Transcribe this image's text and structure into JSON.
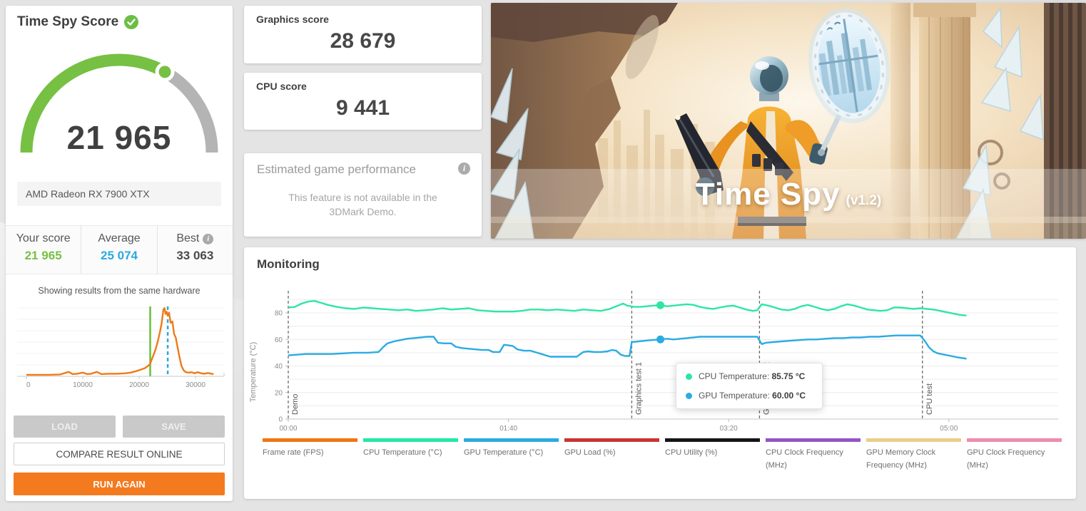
{
  "result_card": {
    "title": "Time Spy Score",
    "score": "21 965",
    "gpu_name": "AMD Radeon RX 7900 XTX",
    "gauge": {
      "fraction": 0.664,
      "green": "#76c043",
      "gray": "#b4b4b4"
    },
    "stats": [
      {
        "label": "Your score",
        "value": "21 965",
        "color": "#76c043"
      },
      {
        "label": "Average",
        "value": "25 074",
        "color": "#2ba9e0"
      },
      {
        "label": "Best",
        "value": "33 063",
        "color": "#4a4a4a"
      }
    ],
    "distribution_note": "Showing results from the same hardware",
    "buttons": {
      "load": "LOAD",
      "save": "SAVE",
      "compare": "COMPARE RESULT ONLINE",
      "run": "RUN AGAIN"
    }
  },
  "score_cards": {
    "graphics": {
      "label": "Graphics score",
      "value": "28 679"
    },
    "cpu": {
      "label": "CPU score",
      "value": "9 441"
    }
  },
  "estimated_card": {
    "title": "Estimated game performance",
    "body_line1": "This feature is not available in the",
    "body_line2": "3DMark Demo."
  },
  "hero": {
    "title": "Time Spy",
    "version": "(v1.2)"
  },
  "monitoring": {
    "title": "Monitoring"
  },
  "chart_data": [
    {
      "type": "line",
      "name": "score-distribution-histogram",
      "title": "Showing results from the same hardware",
      "xticks": [
        0,
        10000,
        20000,
        30000
      ],
      "xlim": [
        0,
        36300
      ],
      "your_score": 21965,
      "average": 25074,
      "line_color": "#ef7a17",
      "your_color": "#6abf3e",
      "average_color": "#2ba9e0",
      "points": [
        [
          0,
          0.02
        ],
        [
          2000,
          0.02
        ],
        [
          4000,
          0.02
        ],
        [
          6000,
          0.025
        ],
        [
          7500,
          0.06
        ],
        [
          8200,
          0.03
        ],
        [
          9000,
          0.035
        ],
        [
          10000,
          0.05
        ],
        [
          10800,
          0.03
        ],
        [
          11500,
          0.035
        ],
        [
          12500,
          0.06
        ],
        [
          13300,
          0.03
        ],
        [
          14500,
          0.035
        ],
        [
          16000,
          0.035
        ],
        [
          17500,
          0.04
        ],
        [
          18500,
          0.05
        ],
        [
          19500,
          0.07
        ],
        [
          20300,
          0.09
        ],
        [
          21000,
          0.11
        ],
        [
          21600,
          0.14
        ],
        [
          21965,
          0.17
        ],
        [
          22400,
          0.26
        ],
        [
          22900,
          0.36
        ],
        [
          23300,
          0.47
        ],
        [
          23700,
          0.6
        ],
        [
          24000,
          0.72
        ],
        [
          24300,
          0.9
        ],
        [
          24500,
          0.92
        ],
        [
          24700,
          0.84
        ],
        [
          24900,
          0.87
        ],
        [
          25074,
          0.82
        ],
        [
          25300,
          0.86
        ],
        [
          25600,
          0.72
        ],
        [
          25900,
          0.74
        ],
        [
          26200,
          0.57
        ],
        [
          26500,
          0.52
        ],
        [
          26800,
          0.4
        ],
        [
          27100,
          0.28
        ],
        [
          27500,
          0.14
        ],
        [
          27900,
          0.08
        ],
        [
          28300,
          0.055
        ],
        [
          28800,
          0.05
        ],
        [
          29300,
          0.055
        ],
        [
          29800,
          0.04
        ],
        [
          30400,
          0.055
        ],
        [
          31000,
          0.04
        ],
        [
          31600,
          0.035
        ],
        [
          32200,
          0.045
        ],
        [
          32800,
          0.035
        ],
        [
          33200,
          0.03
        ]
      ]
    },
    {
      "type": "line",
      "name": "monitoring",
      "ylabel": "Temperature (°C)",
      "ylim": [
        0,
        97
      ],
      "yticks": [
        0,
        20,
        40,
        60,
        80
      ],
      "grid_step": 10,
      "xlim": [
        0,
        350
      ],
      "xticks": [
        {
          "t": 0,
          "label": "00:00"
        },
        {
          "t": 100,
          "label": "01:40"
        },
        {
          "t": 200,
          "label": "03:20"
        },
        {
          "t": 300,
          "label": "05:00"
        }
      ],
      "events": [
        {
          "t": 0,
          "label": "Demo"
        },
        {
          "t": 156,
          "label": "Graphics test 1"
        },
        {
          "t": 214,
          "label": "Graphics test 2"
        },
        {
          "t": 288,
          "label": "CPU test"
        }
      ],
      "marker": {
        "t": 169,
        "cpu": 85.75,
        "gpu": 60.0
      },
      "tooltip": {
        "rows": [
          {
            "label": "CPU Temperature: ",
            "value": "85.75 °C",
            "color": "#2ee6a2"
          },
          {
            "label": "GPU Temperature: ",
            "value": "60.00 °C",
            "color": "#2aabe3"
          }
        ]
      },
      "series": [
        {
          "name": "CPU Temperature (°C)",
          "color": "#2ee6a2",
          "points": [
            [
              0,
              84
            ],
            [
              3,
              84.5
            ],
            [
              6,
              87
            ],
            [
              9,
              88.5
            ],
            [
              12,
              89
            ],
            [
              15,
              87.5
            ],
            [
              18,
              86
            ],
            [
              22,
              84.5
            ],
            [
              26,
              83.5
            ],
            [
              30,
              83
            ],
            [
              34,
              84
            ],
            [
              38,
              83.5
            ],
            [
              42,
              83
            ],
            [
              46,
              82.5
            ],
            [
              50,
              82
            ],
            [
              54,
              82.5
            ],
            [
              58,
              81.5
            ],
            [
              62,
              82
            ],
            [
              66,
              82.5
            ],
            [
              70,
              83.5
            ],
            [
              74,
              82.5
            ],
            [
              78,
              83
            ],
            [
              82,
              83.5
            ],
            [
              86,
              82
            ],
            [
              90,
              81.5
            ],
            [
              94,
              81
            ],
            [
              98,
              81
            ],
            [
              102,
              81
            ],
            [
              106,
              81.5
            ],
            [
              110,
              82.5
            ],
            [
              114,
              82.5
            ],
            [
              118,
              82
            ],
            [
              122,
              82.5
            ],
            [
              126,
              82
            ],
            [
              130,
              81.5
            ],
            [
              134,
              82.5
            ],
            [
              138,
              82
            ],
            [
              142,
              81.5
            ],
            [
              146,
              83
            ],
            [
              149,
              85
            ],
            [
              152,
              87
            ],
            [
              154,
              85.5
            ],
            [
              157,
              84.5
            ],
            [
              160,
              84.5
            ],
            [
              163,
              85
            ],
            [
              166,
              85.5
            ],
            [
              169,
              85.75
            ],
            [
              172,
              85
            ],
            [
              175,
              85.5
            ],
            [
              178,
              86
            ],
            [
              181,
              86.5
            ],
            [
              184,
              86
            ],
            [
              187,
              84.5
            ],
            [
              190,
              83.5
            ],
            [
              193,
              83
            ],
            [
              196,
              84
            ],
            [
              199,
              85
            ],
            [
              202,
              85.5
            ],
            [
              205,
              84
            ],
            [
              208,
              82.5
            ],
            [
              211,
              81.5
            ],
            [
              213,
              82
            ],
            [
              215,
              86.5
            ],
            [
              218,
              85.5
            ],
            [
              221,
              84
            ],
            [
              224,
              82.5
            ],
            [
              227,
              82
            ],
            [
              230,
              83
            ],
            [
              233,
              85
            ],
            [
              236,
              86
            ],
            [
              239,
              84.5
            ],
            [
              242,
              83
            ],
            [
              245,
              82
            ],
            [
              248,
              83
            ],
            [
              251,
              85
            ],
            [
              254,
              86.5
            ],
            [
              257,
              85.5
            ],
            [
              260,
              84
            ],
            [
              263,
              82.5
            ],
            [
              266,
              82
            ],
            [
              269,
              81.5
            ],
            [
              272,
              82
            ],
            [
              275,
              84
            ],
            [
              278,
              84
            ],
            [
              281,
              83.5
            ],
            [
              284,
              83
            ],
            [
              287,
              83.5
            ],
            [
              290,
              83
            ],
            [
              293,
              82.5
            ],
            [
              296,
              81.5
            ],
            [
              299,
              80.5
            ],
            [
              302,
              79.5
            ],
            [
              305,
              78.5
            ],
            [
              308,
              78
            ]
          ]
        },
        {
          "name": "GPU Temperature (°C)",
          "color": "#2aabe3",
          "points": [
            [
              0,
              48
            ],
            [
              4,
              48.5
            ],
            [
              8,
              49
            ],
            [
              14,
              49
            ],
            [
              20,
              49
            ],
            [
              25,
              49.5
            ],
            [
              30,
              50
            ],
            [
              36,
              50
            ],
            [
              41,
              50.5
            ],
            [
              43,
              54
            ],
            [
              45,
              57
            ],
            [
              48,
              58.5
            ],
            [
              51,
              59.5
            ],
            [
              54,
              60.5
            ],
            [
              57,
              61
            ],
            [
              60,
              61.5
            ],
            [
              63,
              62
            ],
            [
              66,
              62
            ],
            [
              68,
              57.5
            ],
            [
              71,
              57
            ],
            [
              74,
              57
            ],
            [
              76,
              54.5
            ],
            [
              79,
              53.5
            ],
            [
              82,
              53
            ],
            [
              85,
              52.5
            ],
            [
              88,
              52
            ],
            [
              91,
              52
            ],
            [
              93,
              50.5
            ],
            [
              96,
              50.5
            ],
            [
              98,
              56
            ],
            [
              100,
              55.5
            ],
            [
              102,
              55
            ],
            [
              104,
              52.5
            ],
            [
              107,
              51.5
            ],
            [
              110,
              51.5
            ],
            [
              113,
              50
            ],
            [
              116,
              48.5
            ],
            [
              119,
              47
            ],
            [
              123,
              47
            ],
            [
              127,
              47
            ],
            [
              131,
              47
            ],
            [
              134,
              50.5
            ],
            [
              136,
              51
            ],
            [
              139,
              50.5
            ],
            [
              142,
              50.5
            ],
            [
              145,
              51
            ],
            [
              147,
              52
            ],
            [
              149,
              51.5
            ],
            [
              151,
              48.5
            ],
            [
              153,
              47.5
            ],
            [
              155,
              47.5
            ],
            [
              156,
              58
            ],
            [
              159,
              58.5
            ],
            [
              162,
              59
            ],
            [
              165,
              59.5
            ],
            [
              169,
              60
            ],
            [
              172,
              60.5
            ],
            [
              175,
              60
            ],
            [
              178,
              60.5
            ],
            [
              181,
              61
            ],
            [
              184,
              61.5
            ],
            [
              187,
              62
            ],
            [
              191,
              62
            ],
            [
              196,
              62
            ],
            [
              201,
              62
            ],
            [
              206,
              62
            ],
            [
              210,
              62
            ],
            [
              213,
              62
            ],
            [
              215,
              56.5
            ],
            [
              217,
              57.5
            ],
            [
              220,
              58
            ],
            [
              224,
              58.5
            ],
            [
              228,
              59
            ],
            [
              232,
              59.5
            ],
            [
              236,
              60
            ],
            [
              240,
              60
            ],
            [
              244,
              60.5
            ],
            [
              248,
              61
            ],
            [
              252,
              61
            ],
            [
              256,
              61.5
            ],
            [
              260,
              61.5
            ],
            [
              264,
              62
            ],
            [
              268,
              62
            ],
            [
              272,
              62.5
            ],
            [
              276,
              63
            ],
            [
              280,
              63
            ],
            [
              284,
              63
            ],
            [
              287,
              63
            ],
            [
              289,
              59
            ],
            [
              291,
              54
            ],
            [
              293,
              51
            ],
            [
              295,
              49.5
            ],
            [
              298,
              48.5
            ],
            [
              301,
              47.5
            ],
            [
              304,
              46.5
            ],
            [
              306,
              46
            ],
            [
              308,
              45.5
            ]
          ]
        }
      ],
      "legend": [
        {
          "label": "Frame rate (FPS)",
          "color": "#ef750f"
        },
        {
          "label": "CPU Temperature (°C)",
          "color": "#23e8a5"
        },
        {
          "label": "GPU Temperature (°C)",
          "color": "#29abe2"
        },
        {
          "label": "GPU Load (%)",
          "color": "#c93434"
        },
        {
          "label": "CPU Utility (%)",
          "color": "#151515"
        },
        {
          "label": "CPU Clock Frequency (MHz)",
          "color": "#9455c8"
        },
        {
          "label": "GPU Memory Clock Frequency (MHz)",
          "color": "#e8cf8a"
        },
        {
          "label": "GPU Clock Frequency (MHz)",
          "color": "#f08cab"
        }
      ]
    }
  ]
}
